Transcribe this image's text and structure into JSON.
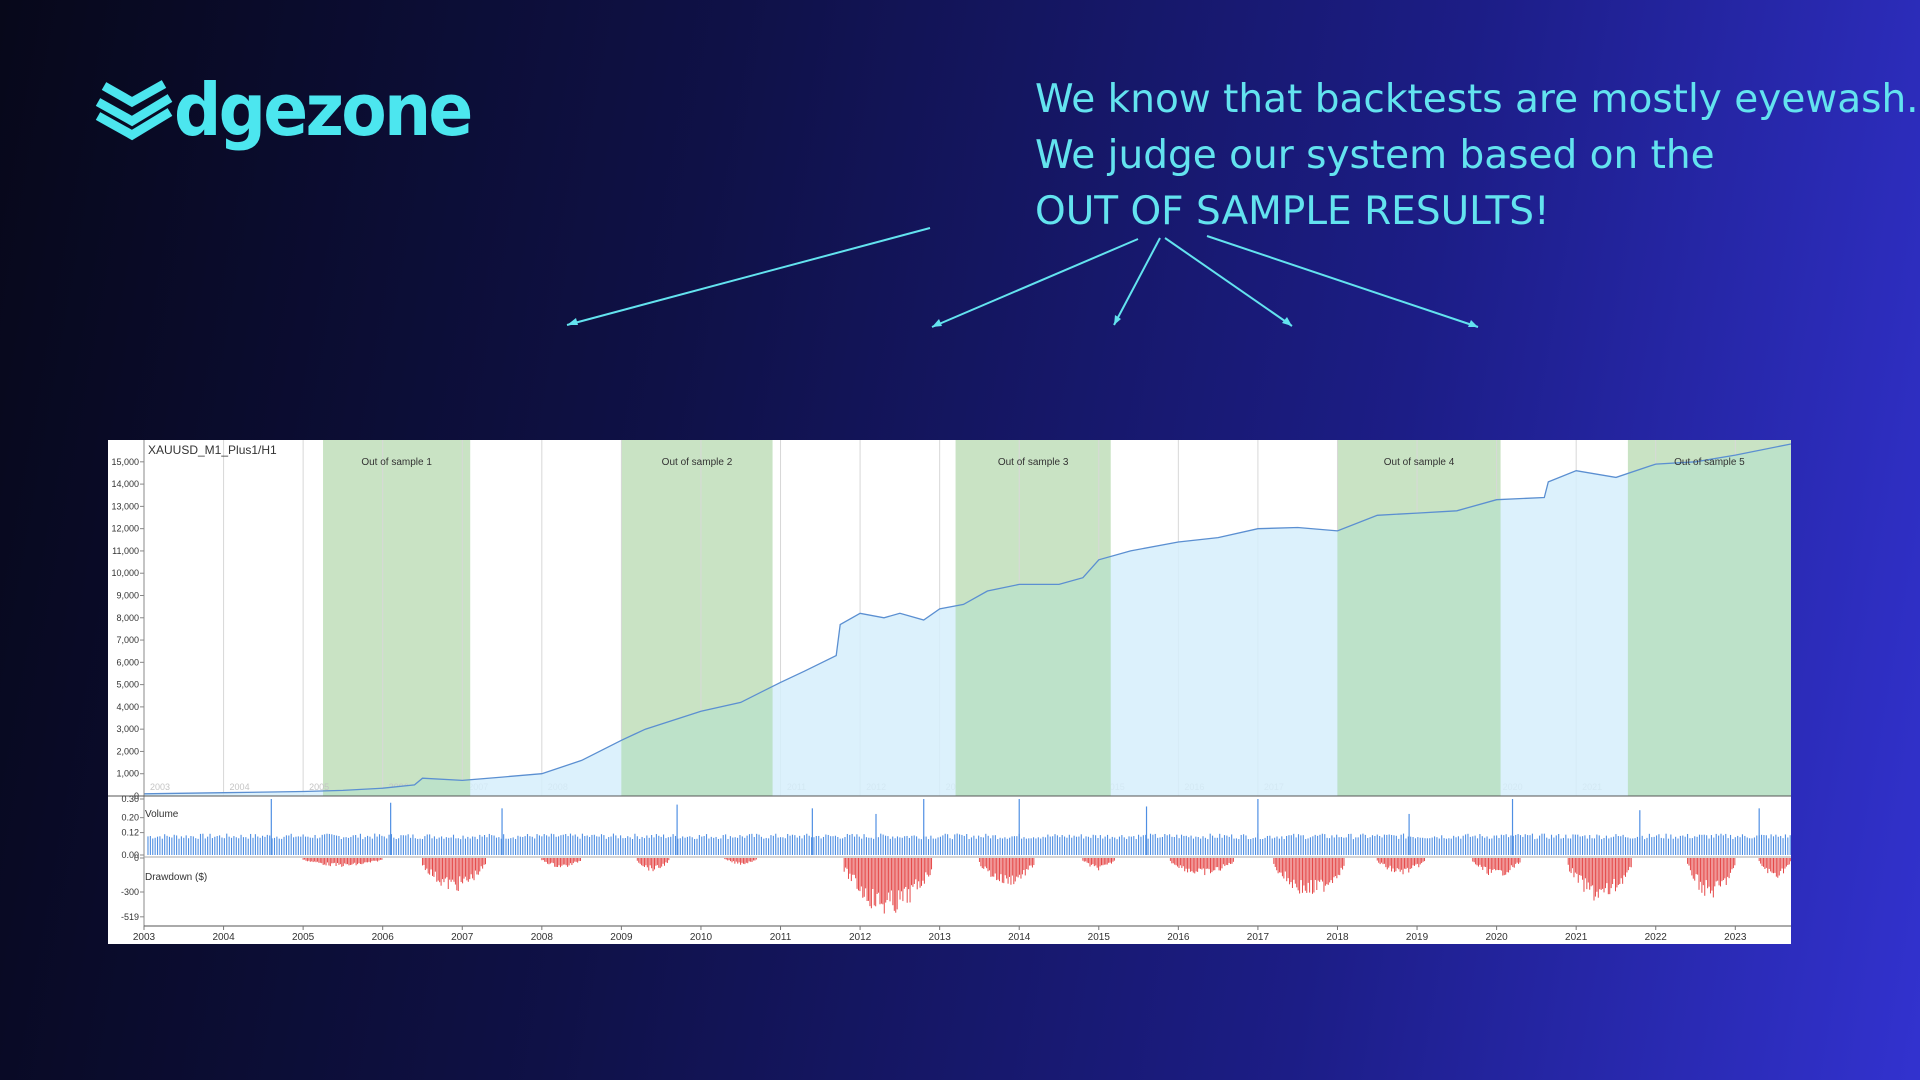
{
  "brand": {
    "wordmark": "dgezone",
    "accent": "#4ce6ef"
  },
  "headline": {
    "line1": "We know that backtests are mostly eyewash.",
    "line2": "We judge our system based on the",
    "line3": "OUT OF SAMPLE RESULTS!"
  },
  "chart_data": {
    "type": "area",
    "title": "XAUUSD_M1_Plus1/H1",
    "x_range": [
      2003.0,
      2023.7
    ],
    "years": [
      "2003",
      "2004",
      "2005",
      "2006",
      "2007",
      "2008",
      "2009",
      "2010",
      "2011",
      "2012",
      "2013",
      "2014",
      "2015",
      "2016",
      "2017",
      "2018",
      "2019",
      "2020",
      "2021",
      "2022",
      "2023"
    ],
    "equity": {
      "ylim": [
        0,
        15800
      ],
      "yticks": [
        0,
        1000,
        2000,
        3000,
        4000,
        5000,
        6000,
        7000,
        8000,
        9000,
        10000,
        11000,
        12000,
        13000,
        14000,
        15000
      ],
      "ytick_labels": [
        "0",
        "1,000",
        "2,000",
        "3,000",
        "4,000",
        "5,000",
        "6,000",
        "7,000",
        "8,000",
        "9,000",
        "10,000",
        "11,000",
        "12,000",
        "13,000",
        "14,000",
        "15,000"
      ],
      "x": [
        2003.0,
        2004.0,
        2005.0,
        2005.5,
        2006.0,
        2006.4,
        2006.5,
        2007.0,
        2007.5,
        2008.0,
        2008.5,
        2009.0,
        2009.3,
        2010.0,
        2010.5,
        2011.0,
        2011.3,
        2011.7,
        2011.75,
        2012.0,
        2012.3,
        2012.5,
        2012.8,
        2013.0,
        2013.3,
        2013.6,
        2014.0,
        2014.5,
        2014.8,
        2015.0,
        2015.4,
        2016.0,
        2016.5,
        2017.0,
        2017.5,
        2018.0,
        2018.5,
        2019.0,
        2019.5,
        2020.0,
        2020.6,
        2020.65,
        2021.0,
        2021.5,
        2022.0,
        2022.5,
        2023.0,
        2023.7
      ],
      "values": [
        100,
        150,
        200,
        250,
        350,
        500,
        800,
        700,
        850,
        1000,
        1600,
        2500,
        3000,
        3800,
        4200,
        5100,
        5600,
        6300,
        7700,
        8200,
        8000,
        8200,
        7900,
        8400,
        8600,
        9200,
        9500,
        9500,
        9800,
        10600,
        11000,
        11400,
        11600,
        12000,
        12050,
        11900,
        12600,
        12700,
        12800,
        13300,
        13400,
        14100,
        14600,
        14300,
        14900,
        15000,
        15300,
        15800
      ]
    },
    "out_of_sample": [
      {
        "label": "Out of sample 1",
        "start": 2005.25,
        "end": 2007.1
      },
      {
        "label": "Out of sample 2",
        "start": 2009.0,
        "end": 2010.9
      },
      {
        "label": "Out of sample 3",
        "start": 2013.2,
        "end": 2015.15
      },
      {
        "label": "Out of sample 4",
        "start": 2018.0,
        "end": 2020.05
      },
      {
        "label": "Out of sample 5",
        "start": 2021.65,
        "end": 2023.7
      }
    ],
    "volume": {
      "label": "Volume",
      "ylim": [
        0,
        0.3
      ],
      "ytick_labels": [
        "0.30",
        "0.20",
        "0.12",
        "0.00"
      ],
      "base": 0.1,
      "spikes": [
        [
          2004.6,
          0.3
        ],
        [
          2006.1,
          0.28
        ],
        [
          2007.5,
          0.25
        ],
        [
          2009.7,
          0.27
        ],
        [
          2011.4,
          0.25
        ],
        [
          2012.2,
          0.22
        ],
        [
          2012.8,
          0.3
        ],
        [
          2014.0,
          0.3
        ],
        [
          2015.6,
          0.26
        ],
        [
          2017.0,
          0.3
        ],
        [
          2018.9,
          0.22
        ],
        [
          2020.2,
          0.3
        ],
        [
          2021.8,
          0.24
        ],
        [
          2023.3,
          0.25
        ]
      ]
    },
    "drawdown": {
      "label": "Drawdown ($)",
      "ylim": [
        -600,
        0
      ],
      "ytick_labels": [
        "0",
        "-300",
        "-519"
      ],
      "clusters": [
        {
          "start": 2005.0,
          "end": 2006.0,
          "depth": 80
        },
        {
          "start": 2006.5,
          "end": 2007.3,
          "depth": 300
        },
        {
          "start": 2008.0,
          "end": 2008.5,
          "depth": 90
        },
        {
          "start": 2009.2,
          "end": 2009.6,
          "depth": 120
        },
        {
          "start": 2010.3,
          "end": 2010.7,
          "depth": 60
        },
        {
          "start": 2011.8,
          "end": 2012.9,
          "depth": 519
        },
        {
          "start": 2013.5,
          "end": 2014.2,
          "depth": 250
        },
        {
          "start": 2014.8,
          "end": 2015.2,
          "depth": 110
        },
        {
          "start": 2015.9,
          "end": 2016.7,
          "depth": 160
        },
        {
          "start": 2017.2,
          "end": 2018.1,
          "depth": 350
        },
        {
          "start": 2018.5,
          "end": 2019.1,
          "depth": 150
        },
        {
          "start": 2019.7,
          "end": 2020.3,
          "depth": 170
        },
        {
          "start": 2020.9,
          "end": 2021.7,
          "depth": 400
        },
        {
          "start": 2022.4,
          "end": 2023.0,
          "depth": 370
        },
        {
          "start": 2023.3,
          "end": 2023.7,
          "depth": 180
        }
      ]
    },
    "colors": {
      "equity_fill": "#d6eefb",
      "equity_line": "#5b8fd1",
      "oos_fill": "#c9e3c4",
      "oos_overlap": "#bde2c9",
      "volume": "#4f8fe3",
      "drawdown": "#e54848"
    }
  }
}
